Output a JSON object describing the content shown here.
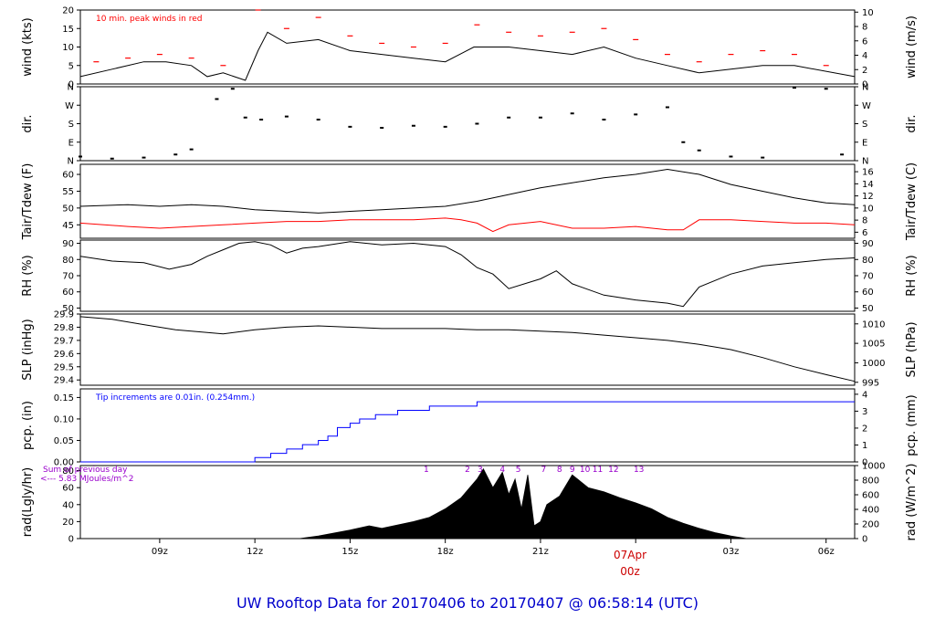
{
  "chart_data": {
    "type": "line",
    "title": "UW Rooftop Data for 20170406  to  20170407 @ 06:58:14  (UTC)",
    "x_ticks": [
      "09z",
      "12z",
      "15z",
      "18z",
      "21z",
      "03z",
      "06z"
    ],
    "date_marker": {
      "date": "07Apr",
      "time": "00z"
    },
    "colors": {
      "black": "#000000",
      "red": "#ff0000",
      "blue": "#0000ff",
      "purple": "#9900cc",
      "title": "#0000cc"
    },
    "panels": [
      {
        "id": "wind",
        "ylabel_left": "wind (kts)",
        "ylabel_right": "wind (m/s)",
        "left_ticks": [
          0,
          5,
          10,
          15,
          20
        ],
        "right_ticks": [
          0,
          2,
          4,
          6,
          8,
          10
        ],
        "ylim": [
          0,
          20
        ],
        "note": "10 min. peak winds in red",
        "series": [
          {
            "color": "black",
            "x": [
              6.5,
              7.5,
              8.5,
              9.2,
              10,
              10.5,
              11,
              11.7,
              12.1,
              12.4,
              13,
              14,
              15,
              16,
              17,
              18,
              18.9,
              20,
              21,
              22,
              23,
              24,
              25,
              26,
              27,
              28,
              29,
              30.9
            ],
            "y": [
              2,
              4,
              6,
              6,
              5,
              2,
              3,
              1,
              9,
              14,
              11,
              12,
              9,
              8,
              7,
              6,
              10,
              10,
              9,
              8,
              10,
              7,
              5,
              3,
              4,
              5,
              5,
              2
            ]
          },
          {
            "color": "red",
            "x": [
              7,
              8,
              9,
              10,
              11,
              12.1,
              13,
              14,
              15,
              16,
              17,
              18,
              19,
              20,
              21,
              22,
              23,
              24,
              25,
              26,
              27,
              28,
              29,
              30
            ],
            "y": [
              6,
              7,
              8,
              7,
              5,
              20,
              15,
              18,
              13,
              11,
              10,
              11,
              16,
              14,
              13,
              14,
              15,
              12,
              8,
              6,
              8,
              9,
              8,
              5
            ]
          }
        ]
      },
      {
        "id": "dir",
        "ylabel_left": "dir.",
        "ylabel_right": "dir.",
        "left_ticks": [
          "N",
          "E",
          "S",
          "W",
          "N"
        ],
        "right_ticks": [
          "N",
          "E",
          "S",
          "W",
          "N"
        ],
        "ylim": [
          0,
          360
        ],
        "series": [
          {
            "color": "black",
            "points": true,
            "x": [
              6.5,
              7.5,
              8.5,
              9.5,
              10,
              10.8,
              11.3,
              11.7,
              12.2,
              13,
              14,
              15,
              16,
              17,
              18,
              19,
              20,
              21,
              22,
              23,
              24,
              25,
              25.5,
              26,
              27,
              28,
              29,
              30,
              30.5
            ],
            "y": [
              20,
              10,
              15,
              30,
              55,
              300,
              350,
              210,
              200,
              215,
              200,
              165,
              160,
              170,
              165,
              180,
              210,
              210,
              230,
              200,
              225,
              260,
              90,
              50,
              20,
              15,
              355,
              350,
              30
            ]
          }
        ]
      },
      {
        "id": "temp",
        "ylabel_left": "Tair/Tdew (F)",
        "ylabel_right": "Tair/Tdew (C)",
        "left_ticks": [
          45,
          50,
          55,
          60
        ],
        "right_ticks": [
          6,
          8,
          10,
          12,
          14,
          16
        ],
        "ylim": [
          41,
          63
        ],
        "series": [
          {
            "name": "Tair",
            "color": "black",
            "x": [
              6.5,
              8,
              9,
              10,
              11,
              12,
              13,
              14,
              15,
              16,
              17,
              18,
              19,
              20,
              21,
              22,
              23,
              24,
              25,
              26,
              27,
              28,
              29,
              30,
              30.9
            ],
            "y": [
              50.5,
              51,
              50.5,
              51,
              50.5,
              49.5,
              49,
              48.5,
              49,
              49.5,
              50,
              50.5,
              52,
              54,
              56,
              57.5,
              59,
              60,
              61.5,
              60,
              57,
              55,
              53,
              51.5,
              51
            ]
          },
          {
            "name": "Tdew",
            "color": "red",
            "x": [
              6.5,
              8,
              9,
              10,
              11,
              12,
              13,
              14,
              15,
              16,
              17,
              18,
              18.5,
              19,
              19.5,
              20,
              21,
              22,
              23,
              24,
              25,
              25.5,
              26,
              27,
              28,
              29,
              30,
              30.9
            ],
            "y": [
              45.5,
              44.5,
              44,
              44.5,
              45,
              45.5,
              46,
              46,
              46.5,
              46.5,
              46.5,
              47,
              46.5,
              45.5,
              43,
              45,
              46,
              44,
              44,
              44.5,
              43.5,
              43.5,
              46.5,
              46.5,
              46,
              45.5,
              45.5,
              45
            ]
          }
        ]
      },
      {
        "id": "rh",
        "ylabel_left": "RH (%)",
        "ylabel_right": "RH (%)",
        "left_ticks": [
          50,
          60,
          70,
          80,
          90
        ],
        "right_ticks": [
          50,
          60,
          70,
          80,
          90
        ],
        "ylim": [
          48,
          92
        ],
        "series": [
          {
            "color": "black",
            "x": [
              6.5,
              7.5,
              8.5,
              9.3,
              10,
              10.5,
              11,
              11.5,
              12,
              12.5,
              13,
              13.5,
              14,
              15,
              16,
              17,
              18,
              18.5,
              19,
              19.5,
              20,
              21,
              21.5,
              22,
              23,
              24,
              25,
              25.5,
              26,
              27,
              28,
              29,
              30,
              30.9
            ],
            "y": [
              82,
              79,
              78,
              74,
              77,
              82,
              86,
              90,
              91,
              89,
              84,
              87,
              88,
              91,
              89,
              90,
              88,
              83,
              75,
              71,
              62,
              68,
              73,
              65,
              58,
              55,
              53,
              51,
              63,
              71,
              76,
              78,
              80,
              81
            ]
          }
        ]
      },
      {
        "id": "slp",
        "ylabel_left": "SLP (inHg)",
        "ylabel_right": "SLP (hPa)",
        "left_ticks": [
          29.4,
          29.5,
          29.6,
          29.7,
          29.8,
          29.9
        ],
        "right_ticks": [
          995,
          1000,
          1005,
          1010
        ],
        "ylim": [
          29.36,
          29.9
        ],
        "series": [
          {
            "color": "black",
            "x": [
              6.5,
              7.5,
              8.5,
              9.5,
              10.5,
              11,
              12,
              13,
              14,
              15,
              16,
              17,
              18,
              19,
              20,
              21,
              22,
              23,
              24,
              25,
              26,
              27,
              28,
              29,
              30,
              30.9
            ],
            "y": [
              29.88,
              29.86,
              29.82,
              29.78,
              29.76,
              29.75,
              29.78,
              29.8,
              29.81,
              29.8,
              29.79,
              29.79,
              29.79,
              29.78,
              29.78,
              29.77,
              29.76,
              29.74,
              29.72,
              29.7,
              29.67,
              29.63,
              29.57,
              29.5,
              29.44,
              29.39
            ]
          }
        ]
      },
      {
        "id": "pcp",
        "ylabel_left": "pcp. (in)",
        "ylabel_right": "pcp. (mm)",
        "left_ticks": [
          0.0,
          0.05,
          0.1,
          0.15
        ],
        "right_ticks": [
          0,
          1,
          2,
          3,
          4
        ],
        "left_tick_labels": [
          "0.00",
          "0.05",
          "0.10",
          "0.15"
        ],
        "ylim": [
          0,
          0.17
        ],
        "note": "Tip increments are 0.01in. (0.254mm.)",
        "series": [
          {
            "color": "blue",
            "step": true,
            "x": [
              6.5,
              12,
              12.5,
              13,
              13.5,
              14,
              14.3,
              14.6,
              15,
              15.3,
              15.8,
              16.5,
              17.5,
              19,
              30.9
            ],
            "y": [
              0,
              0.01,
              0.02,
              0.03,
              0.04,
              0.05,
              0.06,
              0.08,
              0.09,
              0.1,
              0.11,
              0.12,
              0.13,
              0.14,
              0.14
            ]
          }
        ]
      },
      {
        "id": "rad",
        "ylabel_left": "rad(Lgly/hr)",
        "ylabel_right": "rad (W/m^2)",
        "left_ticks": [
          0,
          20,
          40,
          60,
          80
        ],
        "right_ticks": [
          0,
          200,
          400,
          600,
          800,
          1000
        ],
        "ylim": [
          0,
          86
        ],
        "note_lines": [
          "Sum of previous day",
          "<--- 5.83 MJoules/m^2"
        ],
        "markers": [
          "1",
          "2",
          "3",
          "4",
          "5",
          "7",
          "8",
          "9",
          "10",
          "11",
          "12",
          "13"
        ],
        "series": [
          {
            "color": "black",
            "area": true,
            "x": [
              13.4,
              14,
              15,
              15.6,
              16,
              17,
              17.5,
              18,
              18.5,
              19,
              19.2,
              19.5,
              19.8,
              20,
              20.2,
              20.4,
              20.6,
              20.8,
              21,
              21.2,
              21.6,
              22,
              22.5,
              23,
              23.5,
              24,
              24.5,
              25,
              25.5,
              26,
              26.5,
              27,
              27.5
            ],
            "y": [
              0,
              3,
              10,
              15,
              12,
              20,
              25,
              35,
              48,
              70,
              82,
              60,
              78,
              52,
              70,
              35,
              75,
              15,
              20,
              40,
              50,
              75,
              60,
              55,
              48,
              42,
              35,
              25,
              18,
              12,
              7,
              3,
              0
            ]
          }
        ]
      }
    ]
  }
}
